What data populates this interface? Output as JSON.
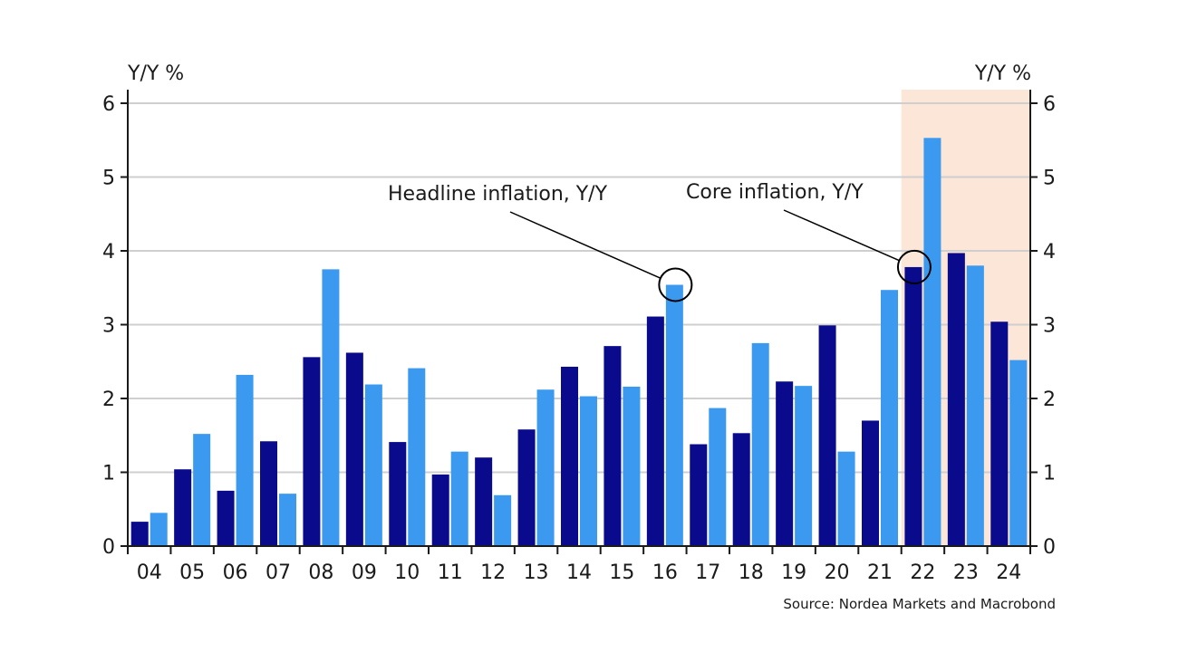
{
  "chart_data": {
    "type": "bar",
    "categories": [
      "04",
      "05",
      "06",
      "07",
      "08",
      "09",
      "10",
      "11",
      "12",
      "13",
      "14",
      "15",
      "16",
      "17",
      "18",
      "19",
      "20",
      "21",
      "22",
      "23",
      "24"
    ],
    "series": [
      {
        "name": "Core inflation, Y/Y",
        "values": [
          0.33,
          1.04,
          0.75,
          1.42,
          2.56,
          2.62,
          1.41,
          0.97,
          1.2,
          1.58,
          2.43,
          2.71,
          3.11,
          1.38,
          1.53,
          2.23,
          2.99,
          1.7,
          3.78,
          3.97,
          3.04
        ]
      },
      {
        "name": "Headline inflation, Y/Y",
        "values": [
          0.45,
          1.52,
          2.32,
          0.71,
          3.75,
          2.19,
          2.41,
          1.28,
          0.69,
          2.12,
          2.03,
          2.16,
          3.54,
          1.87,
          2.75,
          2.17,
          1.28,
          3.47,
          5.53,
          3.8,
          2.52
        ]
      }
    ],
    "ylim": [
      0,
      6
    ],
    "yticks": [
      "0",
      "1",
      "2",
      "3",
      "4",
      "5",
      "6"
    ],
    "ylabel_left": "Y/Y %",
    "ylabel_right": "Y/Y %",
    "grid": true,
    "highlight_categories": [
      "22",
      "23",
      "24"
    ],
    "annotations": [
      {
        "text": "Headline inflation, Y/Y",
        "category": "16",
        "series": 1
      },
      {
        "text": "Core inflation, Y/Y",
        "category": "22",
        "series": 0
      }
    ],
    "source": "Source: Nordea Markets and Macrobond",
    "colors": {
      "core": "#0a0a8c",
      "headline": "#3b9af0",
      "highlight": "#fbe6d7",
      "grid": "#cfcfcf",
      "axis": "#1a1a1a"
    }
  }
}
